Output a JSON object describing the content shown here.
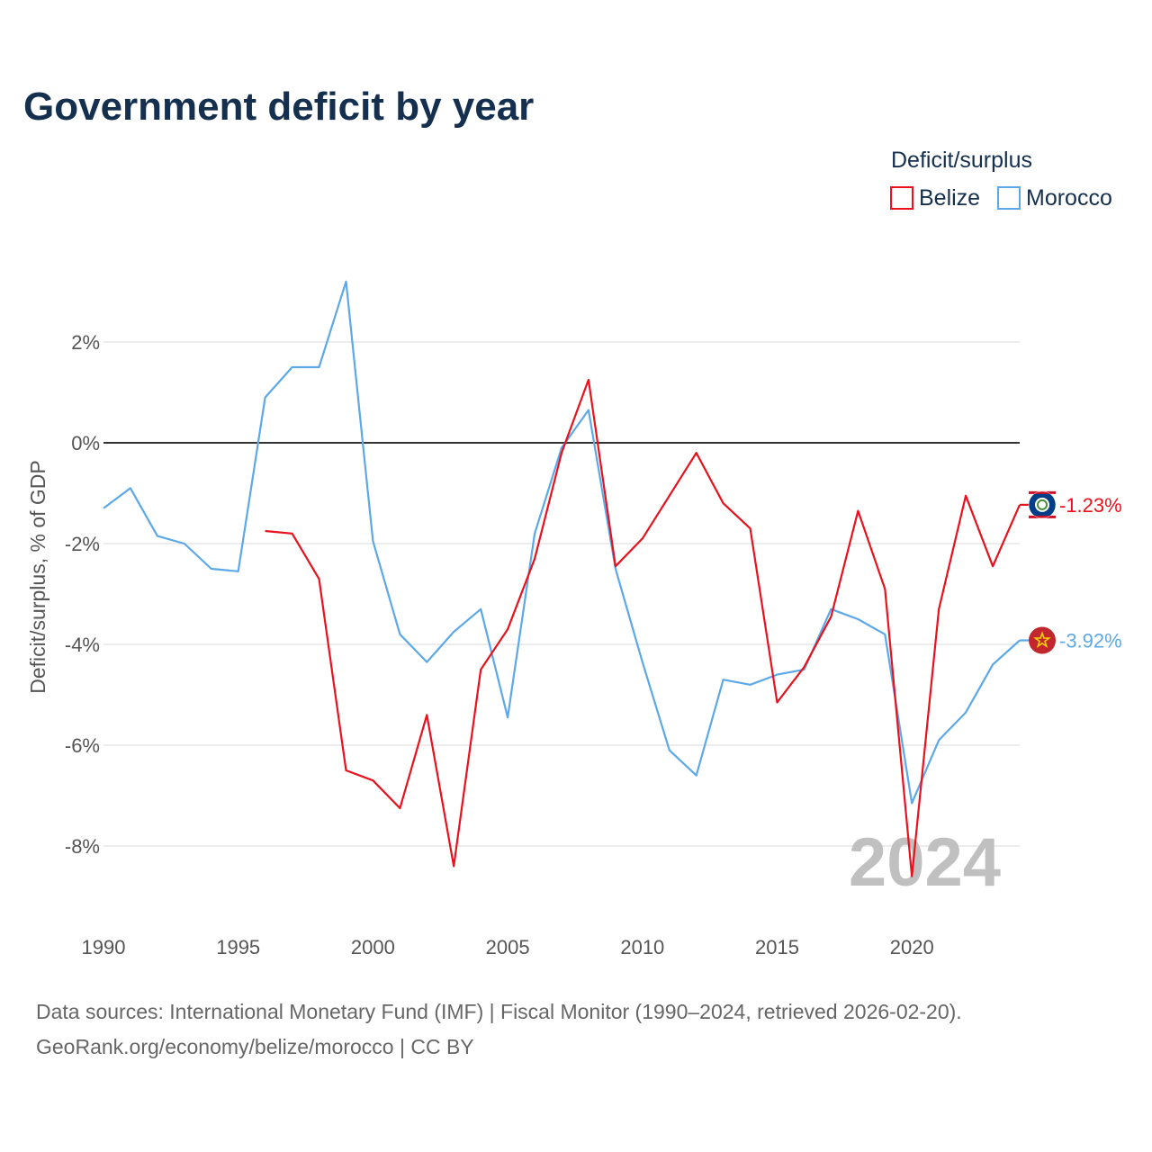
{
  "chart_data": {
    "type": "line",
    "title": "Government deficit by year",
    "ylabel": "Deficit/surplus, % of GDP",
    "xlabel": "",
    "xlim": [
      1990,
      2024
    ],
    "ylim": [
      -9.5,
      3.5
    ],
    "yticks": [
      2,
      0,
      -2,
      -4,
      -6,
      -8
    ],
    "ytick_labels": [
      "2%",
      "0%",
      "-2%",
      "-4%",
      "-6%",
      "-8%"
    ],
    "xticks": [
      1990,
      1995,
      2000,
      2005,
      2010,
      2015,
      2020
    ],
    "xtick_labels": [
      "1990",
      "1995",
      "2000",
      "2005",
      "2010",
      "2015",
      "2020"
    ],
    "legend": {
      "title": "Deficit/surplus",
      "position": "top-right",
      "entries": [
        "Belize",
        "Morocco"
      ]
    },
    "current_year_label": "2024",
    "series": [
      {
        "name": "Belize",
        "color": "#e8121c",
        "end_label": "-1.23%",
        "flag_icon": "belize-flag-icon",
        "x": [
          1996,
          1997,
          1998,
          1999,
          2000,
          2001,
          2002,
          2003,
          2004,
          2005,
          2006,
          2007,
          2008,
          2009,
          2010,
          2011,
          2012,
          2013,
          2014,
          2015,
          2016,
          2017,
          2018,
          2019,
          2020,
          2021,
          2022,
          2023,
          2024
        ],
        "values": [
          -1.75,
          -1.8,
          -2.7,
          -6.5,
          -6.7,
          -7.25,
          -5.4,
          -8.4,
          -4.5,
          -3.7,
          -2.3,
          -0.2,
          1.25,
          -2.45,
          -1.9,
          -1.05,
          -0.2,
          -1.2,
          -1.7,
          -5.15,
          -4.45,
          -3.45,
          -1.35,
          -2.9,
          -8.6,
          -3.3,
          -1.05,
          -2.45,
          -1.23
        ]
      },
      {
        "name": "Morocco",
        "color": "#5ca8e8",
        "end_label": "-3.92%",
        "flag_icon": "morocco-flag-icon",
        "x": [
          1990,
          1991,
          1992,
          1993,
          1994,
          1995,
          1996,
          1997,
          1998,
          1999,
          2000,
          2001,
          2002,
          2003,
          2004,
          2005,
          2006,
          2007,
          2008,
          2009,
          2010,
          2011,
          2012,
          2013,
          2014,
          2015,
          2016,
          2017,
          2018,
          2019,
          2020,
          2021,
          2022,
          2023,
          2024
        ],
        "values": [
          -1.3,
          -0.9,
          -1.85,
          -2.0,
          -2.5,
          -2.55,
          0.9,
          1.5,
          1.5,
          3.2,
          -1.95,
          -3.8,
          -4.35,
          -3.75,
          -3.3,
          -5.45,
          -1.8,
          -0.1,
          0.65,
          -2.5,
          -4.35,
          -6.1,
          -6.6,
          -4.7,
          -4.8,
          -4.6,
          -4.5,
          -3.3,
          -3.5,
          -3.8,
          -7.15,
          -5.9,
          -5.35,
          -4.4,
          -3.92
        ]
      }
    ]
  },
  "source": {
    "line1": "Data sources: International Monetary Fund (IMF) | Fiscal Monitor (1990–2024, retrieved 2026-02-20).",
    "line2": "GeoRank.org/economy/belize/morocco | CC BY"
  }
}
